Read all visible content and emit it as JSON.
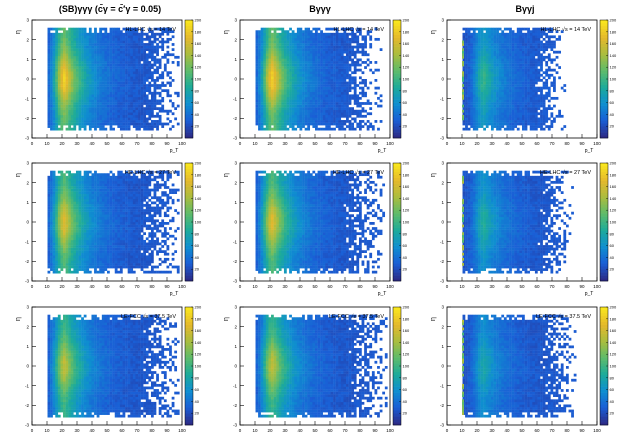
{
  "chart_data": {
    "type": "heatmap",
    "layout": "3x3 grid",
    "column_titles": [
      "(SB)γγγ (c̄γ = c̄′γ = 0.05)",
      "Bγγγ",
      "Bγγj"
    ],
    "row_labels": [
      "HL-LHC √s = 14 TeV",
      "HE-LHC √s = 27 TeV",
      "LE-FCC √s = 37.5 TeV"
    ],
    "xlabel": "p_T (GeV)",
    "xlabel_short": "p_T",
    "ylabel": "η",
    "ylabel_short": "η",
    "xlim": [
      0,
      100
    ],
    "ylim": [
      -3,
      3
    ],
    "x_ticks": [
      "0",
      "10",
      "20",
      "30",
      "40",
      "50",
      "60",
      "70",
      "80",
      "90",
      "100"
    ],
    "y_ticks": [
      "-3",
      "-2",
      "-1",
      "0",
      "1",
      "2",
      "3"
    ],
    "colorbar_ranges": [
      [
        0,
        200
      ],
      [
        0,
        200
      ],
      [
        0,
        200
      ]
    ],
    "colorbar_ticks": [
      "20",
      "40",
      "60",
      "80",
      "100",
      "120",
      "140",
      "160",
      "180",
      "200"
    ],
    "panels": [
      {
        "row": 0,
        "col": 0,
        "label": "HL-LHC √s = 14 TeV",
        "peak_pt": 22,
        "pt_min": 10,
        "pt_max": 95,
        "intensity": 1.0,
        "spike": false
      },
      {
        "row": 0,
        "col": 1,
        "label": "HL-LHC √s = 14 TeV",
        "peak_pt": 22,
        "pt_min": 10,
        "pt_max": 90,
        "intensity": 1.0,
        "spike": false
      },
      {
        "row": 0,
        "col": 2,
        "label": "HL-LHC √s = 14 TeV",
        "peak_pt": 25,
        "pt_min": 10,
        "pt_max": 75,
        "intensity": 0.45,
        "spike": true
      },
      {
        "row": 1,
        "col": 0,
        "label": "HE-LHC √s = 27 TeV",
        "peak_pt": 22,
        "pt_min": 10,
        "pt_max": 95,
        "intensity": 0.9,
        "spike": false
      },
      {
        "row": 1,
        "col": 1,
        "label": "HE-LHC √s = 27 TeV",
        "peak_pt": 22,
        "pt_min": 10,
        "pt_max": 92,
        "intensity": 0.9,
        "spike": false
      },
      {
        "row": 1,
        "col": 2,
        "label": "HE-LHC √s = 27 TeV",
        "peak_pt": 25,
        "pt_min": 10,
        "pt_max": 80,
        "intensity": 0.4,
        "spike": true
      },
      {
        "row": 2,
        "col": 0,
        "label": "LE-FCC √s = 37.5 TeV",
        "peak_pt": 22,
        "pt_min": 10,
        "pt_max": 95,
        "intensity": 0.8,
        "spike": false
      },
      {
        "row": 2,
        "col": 1,
        "label": "LE-FCC √s = 37.5 TeV",
        "peak_pt": 22,
        "pt_min": 10,
        "pt_max": 95,
        "intensity": 0.8,
        "spike": false
      },
      {
        "row": 2,
        "col": 2,
        "label": "LE-FCC √s = 37.5 TeV",
        "peak_pt": 25,
        "pt_min": 10,
        "pt_max": 82,
        "intensity": 0.35,
        "spike": true
      }
    ],
    "colormap": [
      "#2b2a87",
      "#1a5fd6",
      "#0f8fd0",
      "#1dab9a",
      "#5dbb6b",
      "#a9bd3f",
      "#e4b82c",
      "#f9e51f"
    ]
  }
}
